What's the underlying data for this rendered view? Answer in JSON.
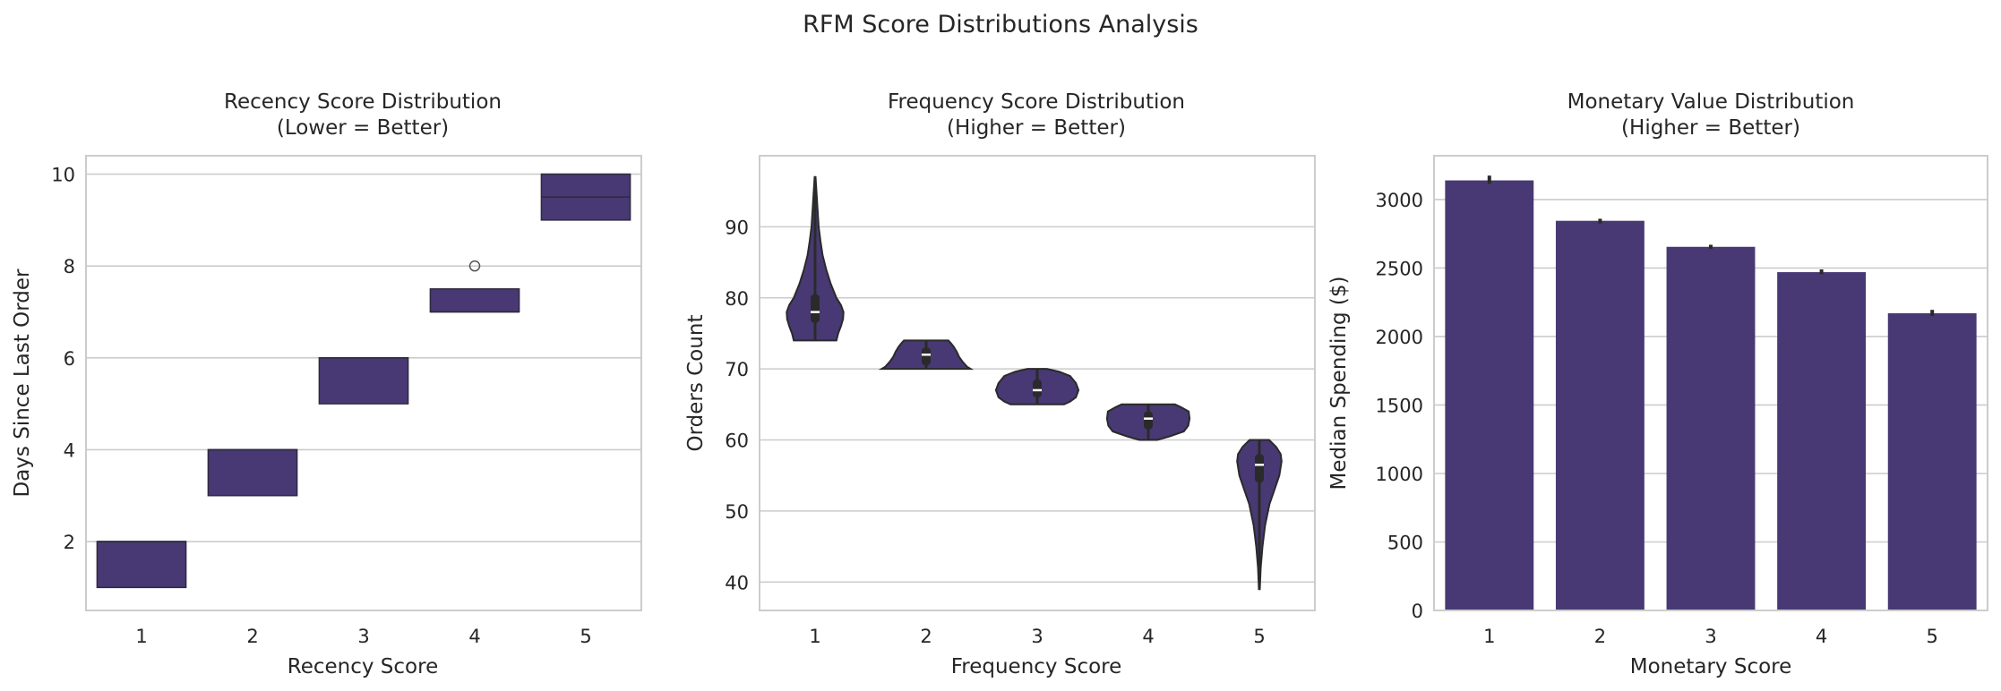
{
  "figure": {
    "suptitle": "RFM Score Distributions Analysis"
  },
  "colors": {
    "fill": "#483974",
    "edge": "#2f2a3e",
    "grid": "#cccccc",
    "spine": "#cccccc",
    "dark": "#2a2a2a",
    "text": "#262626"
  },
  "chart_data": [
    {
      "type": "box",
      "title_line1": "Recency Score Distribution",
      "title_line2": "(Lower = Better)",
      "xlabel": "Recency Score",
      "ylabel": "Days Since Last Order",
      "categories": [
        "1",
        "2",
        "3",
        "4",
        "5"
      ],
      "ylim": [
        0.5,
        10.4
      ],
      "yticks": [
        2,
        4,
        6,
        8,
        10
      ],
      "grid": true,
      "boxes": [
        {
          "q1": 1,
          "median": 2,
          "q3": 2
        },
        {
          "q1": 3,
          "median": 4,
          "q3": 4
        },
        {
          "q1": 5,
          "median": 6,
          "q3": 6
        },
        {
          "q1": 7,
          "median": 7,
          "q3": 7.5,
          "outliers": [
            8
          ]
        },
        {
          "q1": 9,
          "median": 9.5,
          "q3": 10
        }
      ]
    },
    {
      "type": "violin",
      "title_line1": "Frequency Score Distribution",
      "title_line2": "(Higher = Better)",
      "xlabel": "Frequency Score",
      "ylabel": "Orders Count",
      "categories": [
        "1",
        "2",
        "3",
        "4",
        "5"
      ],
      "ylim": [
        36,
        100
      ],
      "yticks": [
        40,
        50,
        60,
        70,
        80,
        90
      ],
      "grid": true,
      "violins": [
        {
          "min": 74,
          "max": 97,
          "median": 78,
          "q1": 76.5,
          "q3": 80.5,
          "profile": [
            [
              74,
              0.48
            ],
            [
              75,
              0.52
            ],
            [
              76,
              0.58
            ],
            [
              77,
              0.63
            ],
            [
              78,
              0.64
            ],
            [
              79,
              0.58
            ],
            [
              80,
              0.48
            ],
            [
              82,
              0.35
            ],
            [
              84,
              0.25
            ],
            [
              86,
              0.17
            ],
            [
              88,
              0.12
            ],
            [
              90,
              0.08
            ],
            [
              93,
              0.05
            ],
            [
              97,
              0.01
            ]
          ]
        },
        {
          "min": 70,
          "max": 74,
          "median": 72,
          "q1": 70.5,
          "q3": 73,
          "profile": [
            [
              70,
              1.0
            ],
            [
              70.3,
              0.92
            ],
            [
              71,
              0.82
            ],
            [
              71.7,
              0.74
            ],
            [
              72.4,
              0.69
            ],
            [
              73.1,
              0.62
            ],
            [
              73.6,
              0.56
            ],
            [
              74,
              0.5
            ]
          ]
        },
        {
          "min": 65,
          "max": 70,
          "median": 67,
          "q1": 66,
          "q3": 68.5,
          "profile": [
            [
              65,
              0.6
            ],
            [
              65.4,
              0.74
            ],
            [
              66,
              0.87
            ],
            [
              67,
              0.93
            ],
            [
              68,
              0.87
            ],
            [
              69,
              0.74
            ],
            [
              69.6,
              0.5
            ],
            [
              70,
              0.22
            ]
          ]
        },
        {
          "min": 60,
          "max": 65,
          "median": 63,
          "q1": 61.5,
          "q3": 64,
          "profile": [
            [
              60,
              0.2
            ],
            [
              60.5,
              0.48
            ],
            [
              61.2,
              0.8
            ],
            [
              62,
              0.9
            ],
            [
              63,
              0.93
            ],
            [
              64,
              0.91
            ],
            [
              64.6,
              0.74
            ],
            [
              65,
              0.6
            ]
          ]
        },
        {
          "min": 39,
          "max": 60,
          "median": 56.5,
          "q1": 54,
          "q3": 58,
          "profile": [
            [
              39,
              0.01
            ],
            [
              42,
              0.03
            ],
            [
              45,
              0.07
            ],
            [
              48,
              0.13
            ],
            [
              51,
              0.23
            ],
            [
              53,
              0.34
            ],
            [
              55,
              0.45
            ],
            [
              57,
              0.5
            ],
            [
              58,
              0.48
            ],
            [
              59,
              0.38
            ],
            [
              60,
              0.22
            ]
          ]
        }
      ]
    },
    {
      "type": "bar",
      "title_line1": "Monetary Value Distribution",
      "title_line2": "(Higher = Better)",
      "xlabel": "Monetary Score",
      "ylabel": "Median Spending ($)",
      "categories": [
        "1",
        "2",
        "3",
        "4",
        "5"
      ],
      "values": [
        3140,
        2845,
        2655,
        2470,
        2170
      ],
      "errors": [
        [
          3115,
          3175
        ],
        [
          2825,
          2860
        ],
        [
          2640,
          2670
        ],
        [
          2455,
          2490
        ],
        [
          2150,
          2195
        ]
      ],
      "ylim": [
        0,
        3320
      ],
      "yticks": [
        0,
        500,
        1000,
        1500,
        2000,
        2500,
        3000
      ],
      "grid": true
    }
  ]
}
